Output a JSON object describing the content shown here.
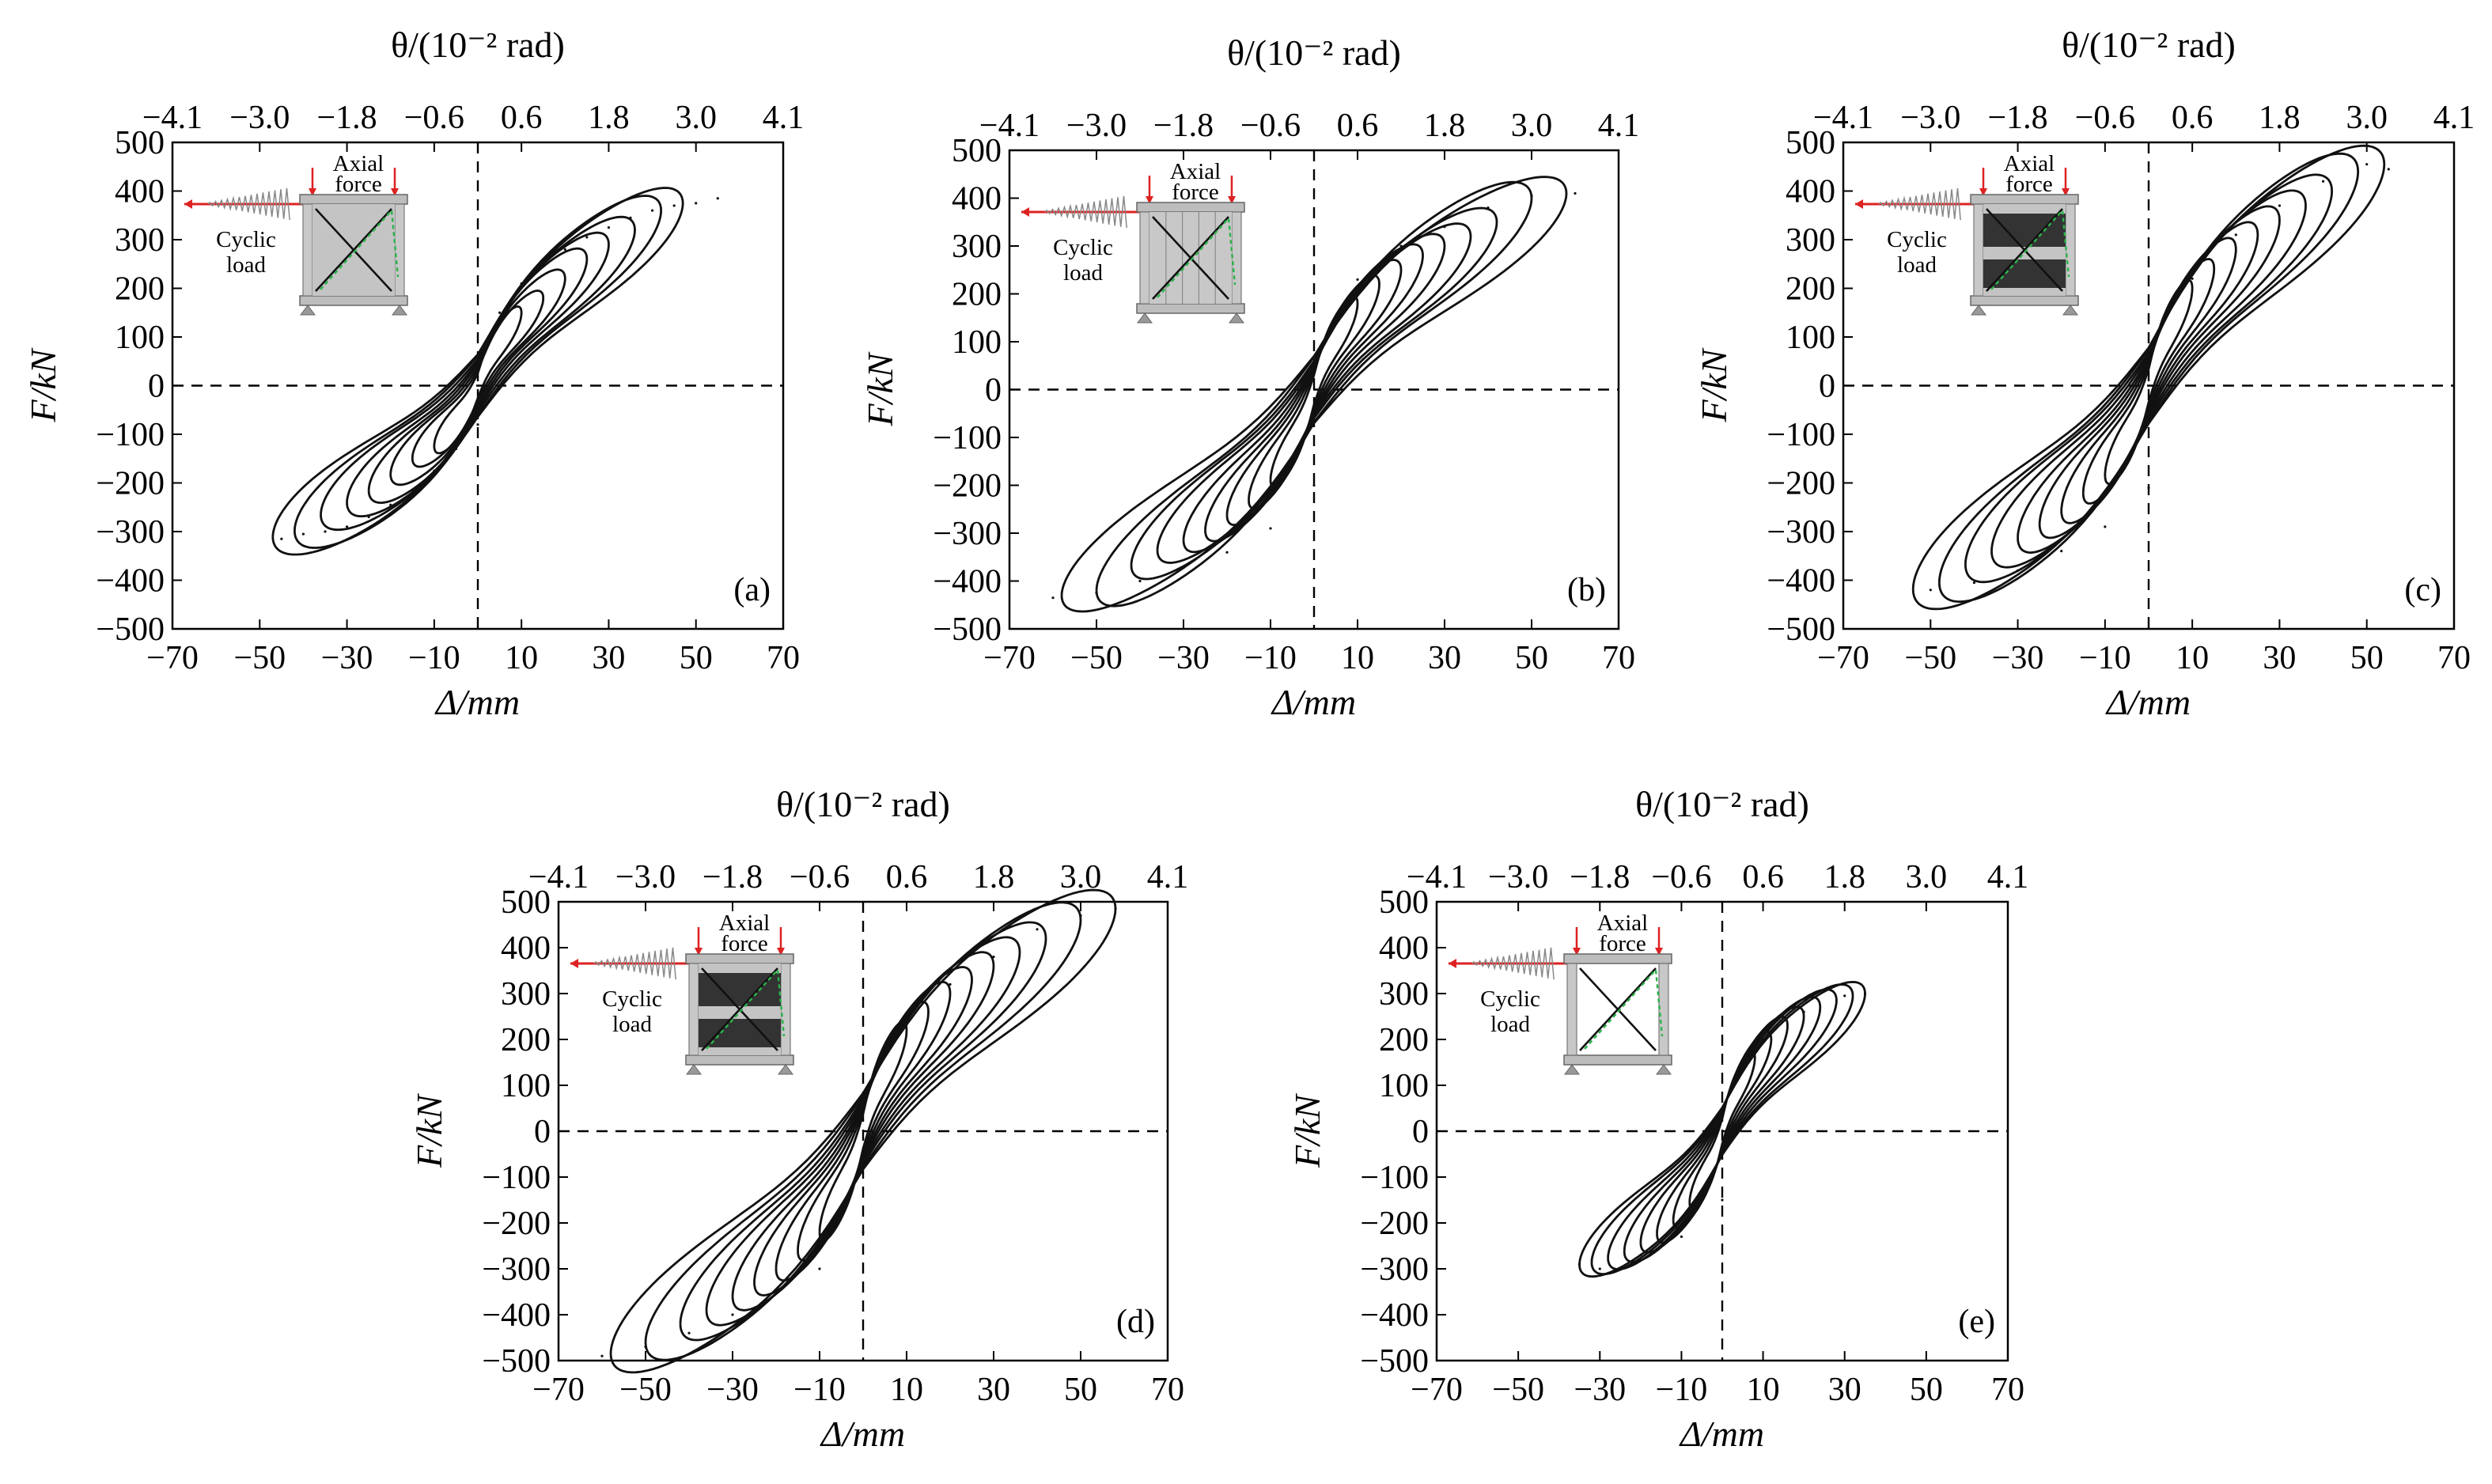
{
  "figure": {
    "top_axis_label": "θ/(10⁻² rad)",
    "x_axis_label": "Δ/mm",
    "y_axis_label": "F/kN",
    "inset_labels": {
      "axial": "Axial",
      "force": "force",
      "cyclic": "Cyclic",
      "load": "load"
    }
  },
  "chart_data": [
    {
      "type": "line",
      "panel": "(a)",
      "xlim": [
        -70,
        70
      ],
      "ylim": [
        -500,
        500
      ],
      "x_ticks": [
        -70,
        -50,
        -30,
        -10,
        10,
        30,
        50,
        70
      ],
      "y_ticks": [
        -500,
        -400,
        -300,
        -200,
        -100,
        0,
        100,
        200,
        300,
        400,
        500
      ],
      "top_ticks": [
        "−4.1",
        "−3.0",
        "−1.8",
        "−0.6",
        "0.6",
        "1.8",
        "3.0",
        "4.1"
      ],
      "envelope_x": [
        -45,
        -40,
        -35,
        -30,
        -25,
        -20,
        -15,
        -10,
        -5,
        0,
        5,
        10,
        15,
        20,
        25,
        30,
        35,
        40,
        45,
        50,
        55
      ],
      "envelope_positive_F": [
        null,
        null,
        null,
        null,
        null,
        null,
        null,
        null,
        null,
        null,
        150,
        210,
        250,
        280,
        305,
        325,
        345,
        360,
        370,
        375,
        385
      ],
      "envelope_negative_F": [
        -315,
        -305,
        -300,
        -290,
        -270,
        -245,
        -215,
        -175,
        -130,
        -80,
        null,
        null,
        null,
        null,
        null,
        null,
        null,
        null,
        null,
        null,
        null
      ]
    },
    {
      "type": "line",
      "panel": "(b)",
      "xlim": [
        -70,
        70
      ],
      "ylim": [
        -500,
        500
      ],
      "x_ticks": [
        -70,
        -50,
        -30,
        -10,
        10,
        30,
        50,
        70
      ],
      "y_ticks": [
        -500,
        -400,
        -300,
        -200,
        -100,
        0,
        100,
        200,
        300,
        400,
        500
      ],
      "top_ticks": [
        "−4.1",
        "−3.0",
        "−1.8",
        "−0.6",
        "0.6",
        "1.8",
        "3.0",
        "4.1"
      ],
      "envelope_x": [
        -60,
        -50,
        -40,
        -30,
        -20,
        -10,
        0,
        10,
        20,
        30,
        40,
        50,
        60
      ],
      "envelope_positive_F": [
        null,
        null,
        null,
        null,
        null,
        null,
        null,
        230,
        300,
        340,
        380,
        405,
        410
      ],
      "envelope_negative_F": [
        -435,
        -425,
        -400,
        -370,
        -340,
        -290,
        -200,
        null,
        null,
        null,
        null,
        null,
        null
      ]
    },
    {
      "type": "line",
      "panel": "(c)",
      "xlim": [
        -70,
        70
      ],
      "ylim": [
        -500,
        500
      ],
      "x_ticks": [
        -70,
        -50,
        -30,
        -10,
        10,
        30,
        50,
        70
      ],
      "y_ticks": [
        -500,
        -400,
        -300,
        -200,
        -100,
        0,
        100,
        200,
        300,
        400,
        500
      ],
      "top_ticks": [
        "−4.1",
        "−3.0",
        "−1.8",
        "−0.6",
        "0.6",
        "1.8",
        "3.0",
        "4.1"
      ],
      "envelope_x": [
        -50,
        -40,
        -30,
        -20,
        -10,
        0,
        10,
        20,
        30,
        40,
        50,
        55
      ],
      "envelope_positive_F": [
        null,
        null,
        null,
        null,
        null,
        null,
        220,
        310,
        370,
        420,
        455,
        445
      ],
      "envelope_negative_F": [
        -420,
        -405,
        -380,
        -340,
        -290,
        -210,
        null,
        null,
        null,
        null,
        null,
        null
      ]
    },
    {
      "type": "line",
      "panel": "(d)",
      "xlim": [
        -70,
        70
      ],
      "ylim": [
        -500,
        500
      ],
      "x_ticks": [
        -70,
        -50,
        -30,
        -10,
        10,
        30,
        50,
        70
      ],
      "y_ticks": [
        -500,
        -400,
        -300,
        -200,
        -100,
        0,
        100,
        200,
        300,
        400,
        500
      ],
      "top_ticks": [
        "−4.1",
        "−3.0",
        "−1.8",
        "−0.6",
        "0.6",
        "1.8",
        "3.0",
        "4.1"
      ],
      "envelope_x": [
        -60,
        -50,
        -40,
        -30,
        -20,
        -10,
        0,
        10,
        20,
        30,
        40,
        50,
        58
      ],
      "envelope_positive_F": [
        null,
        null,
        null,
        null,
        null,
        null,
        null,
        250,
        320,
        380,
        440,
        470,
        485
      ],
      "envelope_negative_F": [
        -490,
        -470,
        -440,
        -400,
        -350,
        -300,
        -220,
        null,
        null,
        null,
        null,
        null,
        null
      ]
    },
    {
      "type": "line",
      "panel": "(e)",
      "xlim": [
        -70,
        70
      ],
      "ylim": [
        -500,
        500
      ],
      "x_ticks": [
        -70,
        -50,
        -30,
        -10,
        10,
        30,
        50,
        70
      ],
      "y_ticks": [
        -500,
        -400,
        -300,
        -200,
        -100,
        0,
        100,
        200,
        300,
        400,
        500
      ],
      "top_ticks": [
        "−4.1",
        "−3.0",
        "−1.8",
        "−0.6",
        "0.6",
        "1.8",
        "3.0",
        "4.1"
      ],
      "envelope_x": [
        -35,
        -30,
        -20,
        -10,
        0,
        10,
        20,
        30,
        35
      ],
      "envelope_positive_F": [
        null,
        null,
        null,
        null,
        null,
        200,
        260,
        295,
        300
      ],
      "envelope_negative_F": [
        -290,
        -300,
        -270,
        -230,
        -150,
        null,
        null,
        null,
        null
      ]
    }
  ]
}
